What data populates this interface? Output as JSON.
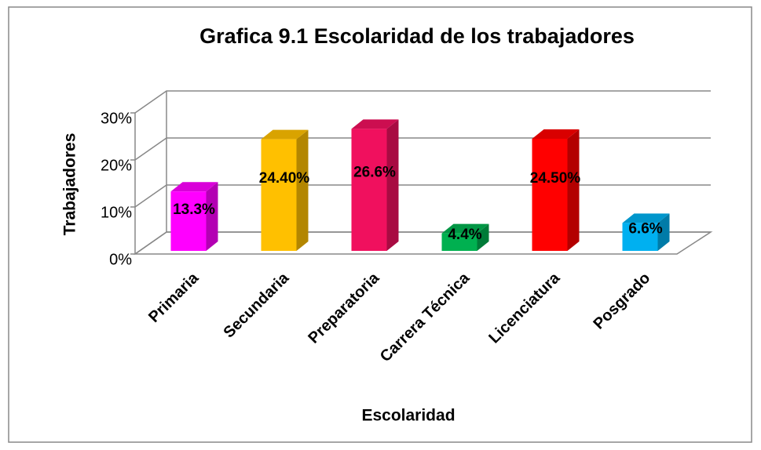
{
  "chart_data": {
    "type": "bar3d",
    "title": "Grafica 9.1 Escolaridad de los trabajadores",
    "x_label": "Escolaridad",
    "y_label": "Trabajadores",
    "categories": [
      "Primaria",
      "Secundaria",
      "Preparatoria",
      "Carrera Técnica",
      "Licenciatura",
      "Posgrado"
    ],
    "values": [
      13.3,
      24.4,
      26.6,
      4.4,
      24.5,
      6.6
    ],
    "value_labels": [
      "13.3%",
      "24.40%",
      "26.6%",
      "4.4%",
      "24.50%",
      "6.6%"
    ],
    "colors": [
      "#ff00ff",
      "#ffc000",
      "#f0105e",
      "#00b050",
      "#ff0000",
      "#00b0f0"
    ],
    "ylim": [
      0,
      30
    ],
    "yticks": [
      {
        "value": 0,
        "label": "0%"
      },
      {
        "value": 10,
        "label": "10%"
      },
      {
        "value": 20,
        "label": "20%"
      },
      {
        "value": 30,
        "label": "30%"
      }
    ],
    "grid": true
  }
}
